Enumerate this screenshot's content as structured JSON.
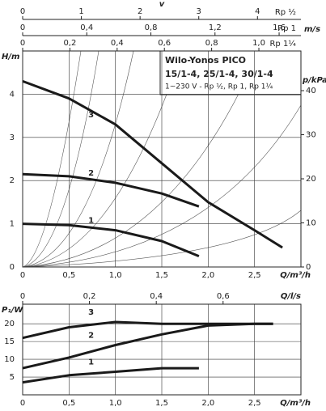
{
  "chart_data": [
    {
      "type": "line",
      "title": "Wilo-Yonos PICO",
      "subtitle": "15/1-4, 25/1-4, 30/1-4",
      "note": "1~230 V - Rp ½, Rp 1, Rp 1¼",
      "xlabel": "Q/m³/h",
      "ylabel": "H/m",
      "y2label": "p/kPa",
      "xlim": [
        0,
        3
      ],
      "xticks": [
        0,
        {
          "value": 0.5,
          "label": "0,5"
        },
        {
          "value": 1.0,
          "label": "1,0"
        },
        {
          "value": 1.5,
          "label": "1,5"
        },
        {
          "value": 2.0,
          "label": "2,0"
        },
        {
          "value": 2.5,
          "label": "2,5"
        }
      ],
      "ylim": [
        0,
        5
      ],
      "yticks": [
        0,
        1,
        2,
        3,
        4
      ],
      "y2lim": [
        0,
        49
      ],
      "y2ticks": [
        0,
        10,
        20,
        30,
        40
      ],
      "grid": true,
      "velocity_label": "v",
      "velocity_scales": [
        {
          "name": "Rp ½",
          "unit": "",
          "xlim": [
            0,
            4.74
          ],
          "xticks": [
            0,
            1,
            2,
            3,
            4
          ]
        },
        {
          "name": "Rp 1",
          "unit": "m/s",
          "xlim": [
            0,
            1.736
          ],
          "xticks": [
            0,
            {
              "value": 0.4,
              "label": "0,4"
            },
            {
              "value": 0.8,
              "label": "0,8"
            },
            {
              "value": 1.2,
              "label": "1,2"
            },
            {
              "value": 1.6,
              "label": "1,6"
            }
          ]
        },
        {
          "name": "Rp 1¼",
          "unit": "",
          "xlim": [
            0,
            1.178
          ],
          "xticks": [
            0,
            {
              "value": 0.2,
              "label": "0,2"
            },
            {
              "value": 0.4,
              "label": "0,4"
            },
            {
              "value": 0.6,
              "label": "0,6"
            },
            {
              "value": 0.8,
              "label": "0,8"
            },
            {
              "value": 1.0,
              "label": "1,0"
            }
          ]
        }
      ],
      "series": [
        {
          "name": "1",
          "color": "#1a1a1a",
          "x": [
            0,
            0.5,
            1,
            1.5,
            1.9
          ],
          "values": [
            1.0,
            0.97,
            0.85,
            0.6,
            0.25
          ]
        },
        {
          "name": "2",
          "color": "#1a1a1a",
          "x": [
            0,
            0.5,
            1,
            1.5,
            1.9
          ],
          "values": [
            2.15,
            2.1,
            1.95,
            1.7,
            1.4
          ]
        },
        {
          "name": "3",
          "color": "#1a1a1a",
          "x": [
            0,
            0.5,
            1,
            1.5,
            2,
            2.5,
            2.8
          ],
          "values": [
            4.3,
            3.9,
            3.3,
            2.4,
            1.5,
            0.85,
            0.45
          ]
        }
      ]
    },
    {
      "type": "line",
      "xlabel": "Q/m³/h",
      "ylabel": "P₁/W",
      "x2label": "Q/l/s",
      "xlim": [
        0,
        3
      ],
      "xticks": [
        0,
        {
          "value": 0.5,
          "label": "0,5"
        },
        {
          "value": 1.0,
          "label": "1,0"
        },
        {
          "value": 1.5,
          "label": "1,5"
        },
        {
          "value": 2.0,
          "label": "2,0"
        },
        {
          "value": 2.5,
          "label": "2,5"
        }
      ],
      "x2lim": [
        0,
        0.833
      ],
      "x2ticks": [
        0,
        {
          "value": 0.2,
          "label": "0,2"
        },
        {
          "value": 0.4,
          "label": "0,4"
        },
        {
          "value": 0.6,
          "label": "0,6"
        }
      ],
      "ylim": [
        0,
        25.5
      ],
      "yticks": [
        5,
        10,
        15,
        20
      ],
      "grid": true,
      "series": [
        {
          "name": "1",
          "color": "#1a1a1a",
          "x": [
            0,
            0.5,
            1,
            1.5,
            1.9
          ],
          "values": [
            3.5,
            5.5,
            6.5,
            7.5,
            7.5
          ]
        },
        {
          "name": "2",
          "color": "#1a1a1a",
          "x": [
            0,
            0.5,
            1,
            1.5,
            2,
            2.5,
            2.7
          ],
          "values": [
            7.5,
            10.5,
            14,
            17,
            19.5,
            20,
            20
          ]
        },
        {
          "name": "3",
          "color": "#1a1a1a",
          "x": [
            0,
            0.5,
            1,
            1.5,
            2,
            2.7
          ],
          "values": [
            16,
            19,
            20.5,
            20,
            20,
            20
          ]
        }
      ]
    }
  ]
}
